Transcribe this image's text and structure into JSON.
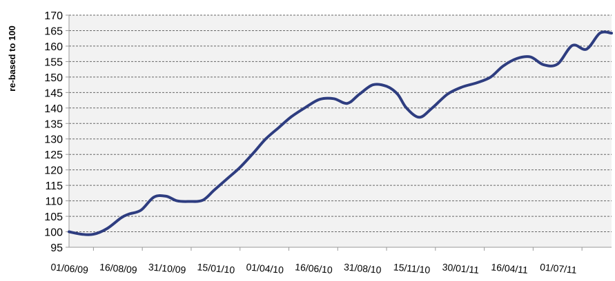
{
  "chart_data": {
    "type": "line",
    "title": "",
    "xlabel": "",
    "ylabel": "re-based to 100",
    "ylim": [
      95,
      170
    ],
    "yticks": [
      95,
      100,
      105,
      110,
      115,
      120,
      125,
      130,
      135,
      140,
      145,
      150,
      155,
      160,
      165,
      170
    ],
    "xlim": [
      "2009-04-24",
      "2011-08-16"
    ],
    "xtick_labels": [
      "01/06/09",
      "16/08/09",
      "31/10/09",
      "15/01/10",
      "01/04/10",
      "16/06/10",
      "31/08/10",
      "15/11/10",
      "30/01/11",
      "16/04/11",
      "01/07/11"
    ],
    "xtick_dates": [
      "2009-06-01",
      "2009-08-16",
      "2009-10-31",
      "2010-01-15",
      "2010-04-01",
      "2010-06-16",
      "2010-08-31",
      "2010-11-15",
      "2011-01-30",
      "2011-04-16",
      "2011-07-01"
    ],
    "grid": true,
    "legend": "none",
    "colors": {
      "line": "#2e3d80",
      "plot_background": "#f2f2f2",
      "grid": "#666666",
      "axis": "#999999"
    },
    "series": [
      {
        "x": [
          "2009-04-24",
          "2009-05-14",
          "2009-06-01",
          "2009-06-22",
          "2009-07-14",
          "2009-07-26",
          "2009-08-14",
          "2009-09-03",
          "2009-09-22",
          "2009-10-09",
          "2009-10-28",
          "2009-11-18",
          "2009-12-06",
          "2009-12-28",
          "2010-01-15",
          "2010-02-05",
          "2010-02-24",
          "2010-03-17",
          "2010-04-05",
          "2010-04-27",
          "2010-05-19",
          "2010-06-10",
          "2010-07-01",
          "2010-07-20",
          "2010-08-10",
          "2010-08-31",
          "2010-09-17",
          "2010-10-01",
          "2010-10-21",
          "2010-11-10",
          "2010-12-04",
          "2010-12-27",
          "2011-01-19",
          "2011-02-09",
          "2011-02-28",
          "2011-03-22",
          "2011-04-12",
          "2011-05-02",
          "2011-05-24",
          "2011-06-16",
          "2011-07-08",
          "2011-07-29",
          "2011-08-16"
        ],
        "y": [
          100,
          99.2,
          99.2,
          101,
          104.5,
          105.7,
          107,
          111.2,
          111.5,
          110,
          109.8,
          110.2,
          113.5,
          117.5,
          120.8,
          125.5,
          130,
          133.8,
          137.2,
          140.2,
          142.8,
          143,
          141.5,
          144.5,
          147.5,
          147,
          144.5,
          140,
          137,
          140,
          144.5,
          146.8,
          148.2,
          150,
          153.5,
          156,
          156.5,
          154,
          154.2,
          160.2,
          159,
          164.2,
          164.2
        ]
      }
    ]
  }
}
